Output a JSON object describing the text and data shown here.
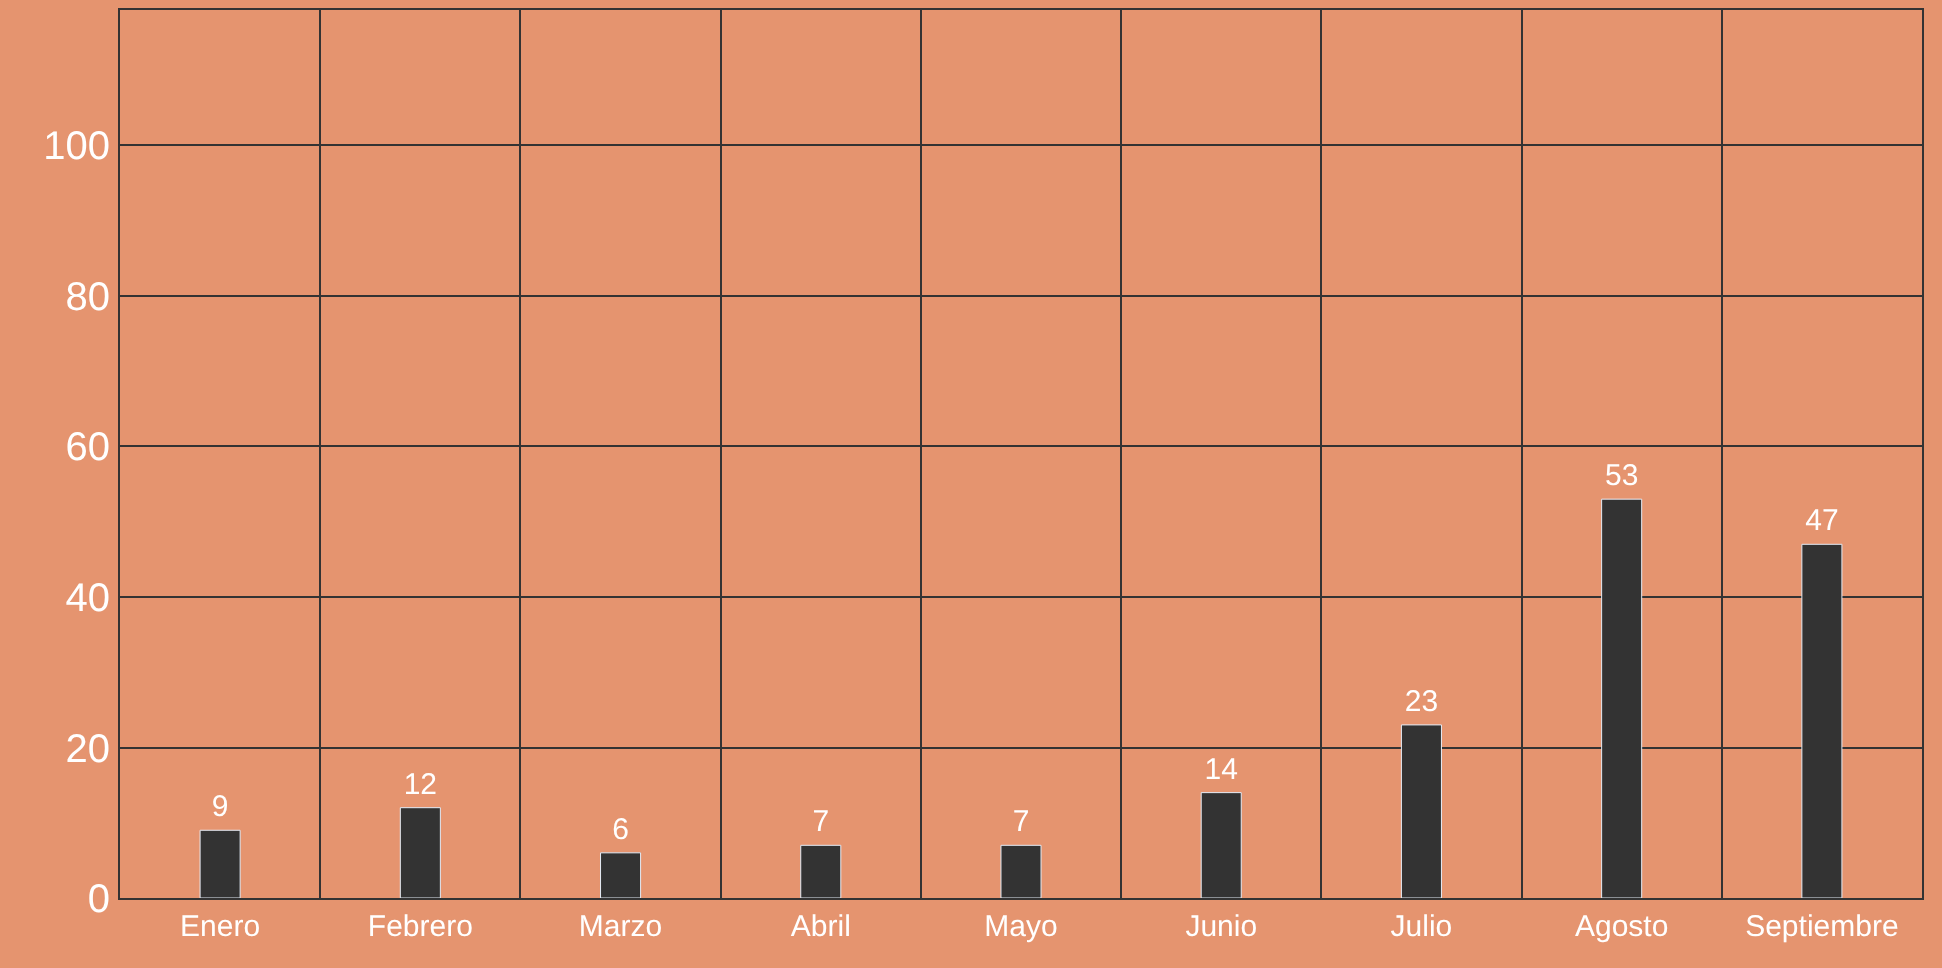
{
  "chart_data": {
    "type": "bar",
    "categories": [
      "Enero",
      "Febrero",
      "Marzo",
      "Abril",
      "Mayo",
      "Junio",
      "Julio",
      "Agosto",
      "Septiembre"
    ],
    "values": [
      9,
      12,
      6,
      7,
      7,
      14,
      23,
      53,
      47
    ],
    "color": "#333333",
    "data_labels": true,
    "ylim": [
      0,
      118
    ],
    "yticks": [
      0,
      20,
      40,
      60,
      80,
      100
    ],
    "grid": true,
    "legend": false
  }
}
